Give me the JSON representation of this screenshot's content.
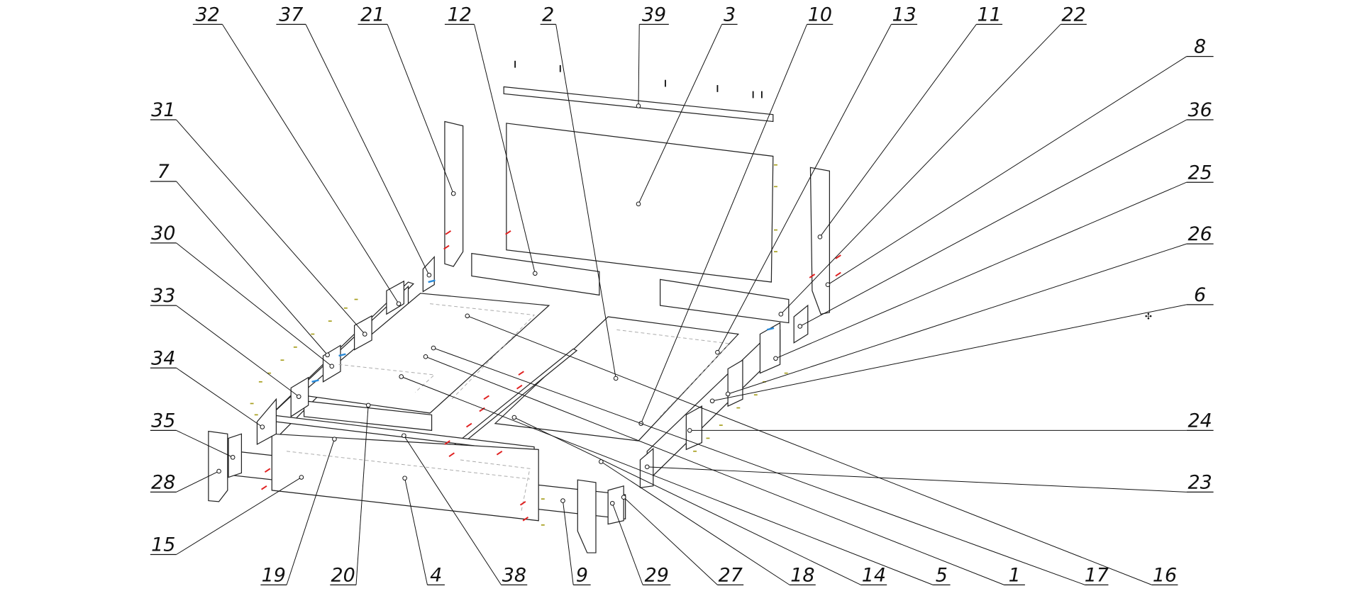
{
  "diagram": {
    "type": "exploded assembly drawing",
    "callouts": [
      "32",
      "37",
      "21",
      "12",
      "2",
      "39",
      "3",
      "10",
      "13",
      "11",
      "22",
      "8",
      "36",
      "25",
      "26",
      "6",
      "24",
      "23",
      "16",
      "17",
      "1",
      "5",
      "14",
      "18",
      "27",
      "29",
      "9",
      "38",
      "4",
      "20",
      "19",
      "15",
      "28",
      "35",
      "34",
      "33",
      "30",
      "7",
      "31"
    ],
    "colors": {
      "line": "#222222",
      "fastener_red": "#e02020",
      "fastener_yellow": "#a8a020",
      "fastener_blue": "#2a8ad8"
    }
  }
}
